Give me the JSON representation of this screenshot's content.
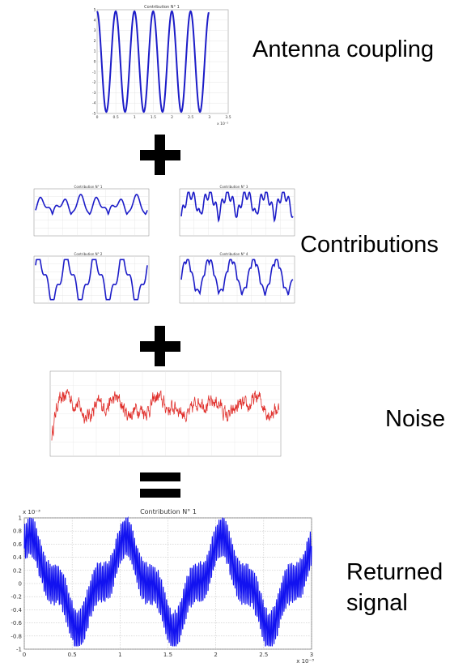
{
  "labels": {
    "antenna": "Antenna coupling",
    "contributions": "Contributions",
    "noise": "Noise",
    "returned_line1": "Returned",
    "returned_line2": "signal"
  },
  "operators": [
    "+",
    "+",
    "="
  ],
  "colors": {
    "signal": "#1c1cc8",
    "noise": "#e0302c",
    "returned": "#1212f0"
  },
  "plots": {
    "antenna": {
      "title": "Contribution N° 1",
      "yticks": [
        "5",
        "4",
        "3",
        "2",
        "1",
        "0",
        "-1",
        "-2",
        "-3",
        "-4",
        "-5"
      ],
      "xticks": [
        "0",
        "0.5",
        "1",
        "1.5",
        "2",
        "2.5",
        "3",
        "3.5"
      ],
      "xexp": "x 10⁻³"
    },
    "contrib_tl": {
      "title": "Contribution N° 1"
    },
    "contrib_tr": {
      "title": "Contribution N° 3"
    },
    "contrib_bl": {
      "title": "Contribution N° 2"
    },
    "contrib_br": {
      "title": "Contribution N° 4"
    },
    "returned": {
      "title": "Contribution N° 1",
      "yexp": "x 10⁻³",
      "xexp": "x 10⁻³",
      "yticks": [
        "1",
        "0.8",
        "0.6",
        "0.4",
        "0.2",
        "0",
        "-0.2",
        "-0.4",
        "-0.6",
        "-0.8",
        "-1"
      ],
      "xticks": [
        "0",
        "0.5",
        "1",
        "1.5",
        "2",
        "2.5",
        "3"
      ]
    }
  },
  "chart_data": [
    {
      "type": "line",
      "title": "Contribution N° 1",
      "x_range": [
        0,
        0.0035
      ],
      "ylim": [
        -5,
        5
      ],
      "series": [
        {
          "waveform": "sine",
          "amplitude": 5,
          "cycles": 6
        }
      ]
    },
    {
      "type": "line",
      "title": "Contribution N° 1",
      "series": [
        {
          "waveform": "distorted periodic"
        }
      ]
    },
    {
      "type": "line",
      "title": "Contribution N° 3",
      "series": [
        {
          "waveform": "distorted periodic"
        }
      ]
    },
    {
      "type": "line",
      "title": "Contribution N° 2",
      "series": [
        {
          "waveform": "distorted periodic"
        }
      ]
    },
    {
      "type": "line",
      "title": "Contribution N° 4",
      "series": [
        {
          "waveform": "distorted periodic"
        }
      ]
    },
    {
      "type": "line",
      "series": [
        {
          "waveform": "noise"
        }
      ]
    },
    {
      "type": "line",
      "title": "Contribution N° 1",
      "x_range": [
        0,
        0.003
      ],
      "ylim": [
        -0.001,
        0.001
      ],
      "series": [
        {
          "waveform": "composite"
        }
      ]
    }
  ]
}
